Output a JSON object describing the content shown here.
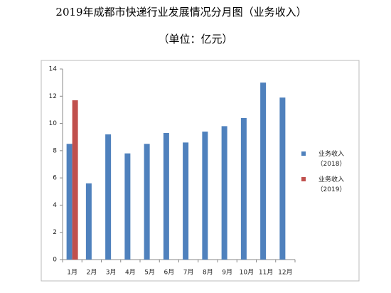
{
  "chart_data": {
    "type": "bar",
    "title": "2019年成都市快递行业发展情况分月图（业务收入）",
    "subtitle": "（单位：亿元）",
    "categories": [
      "1月",
      "2月",
      "3月",
      "4月",
      "5月",
      "6月",
      "7月",
      "8月",
      "9月",
      "10月",
      "11月",
      "12月"
    ],
    "series": [
      {
        "name": "业务收入（2018）",
        "color": "#4f81bd",
        "values": [
          8.5,
          5.6,
          9.2,
          7.8,
          8.5,
          9.3,
          8.6,
          9.4,
          9.8,
          10.4,
          13.0,
          11.9
        ]
      },
      {
        "name": "业务收入（2019）",
        "color": "#c0504d",
        "values": [
          11.7,
          null,
          null,
          null,
          null,
          null,
          null,
          null,
          null,
          null,
          null,
          null
        ]
      }
    ],
    "ylim": [
      0,
      14
    ],
    "yticks": [
      0,
      2,
      4,
      6,
      8,
      10,
      12,
      14
    ],
    "grid": false,
    "legend": "right"
  }
}
